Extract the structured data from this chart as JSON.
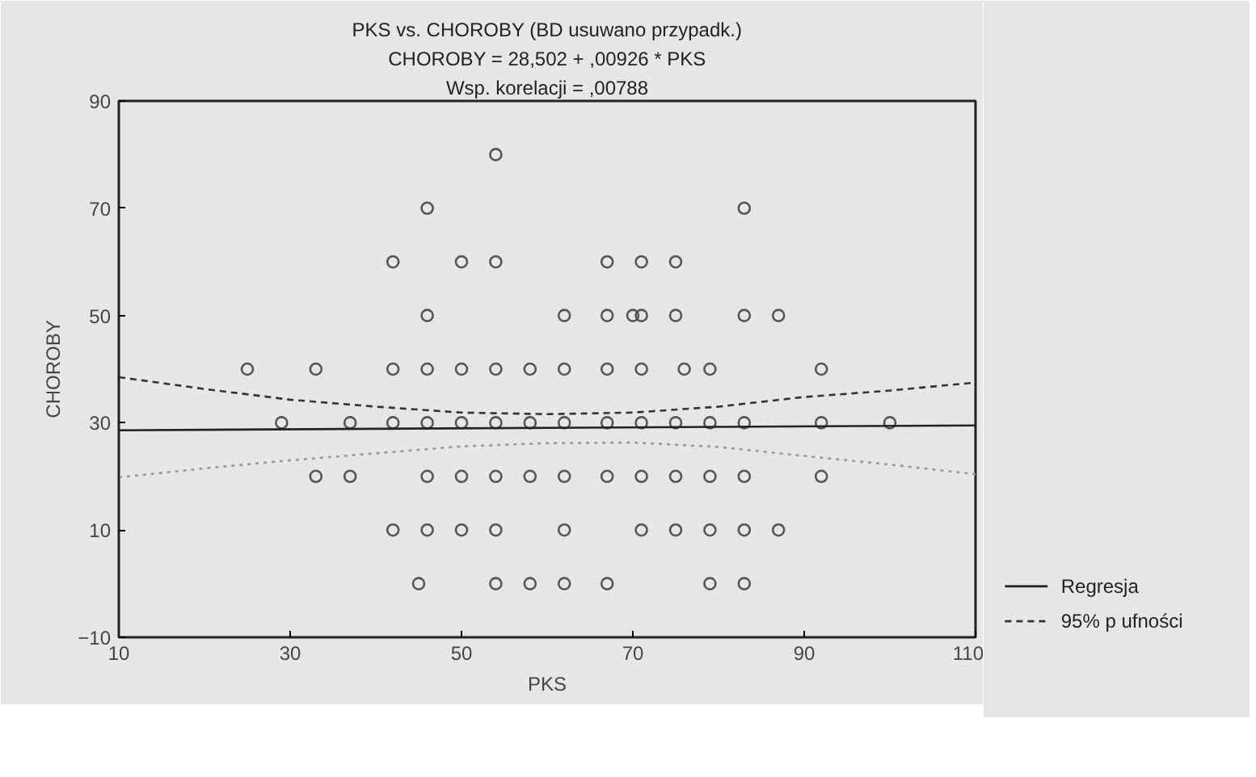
{
  "chart_data": {
    "type": "scatter",
    "title": "PKS vs. CHOROBY (BD usuwano przypadk.)",
    "subtitle": "CHOROBY = 28,502 + ,00926 * PKS",
    "annotations": [
      "Wsp. korelacji = ,00788"
    ],
    "xlabel": "PKS",
    "ylabel": "CHOROBY",
    "xlim": [
      10,
      110
    ],
    "ylim": [
      -10,
      90
    ],
    "xticks": [
      10,
      30,
      50,
      70,
      90,
      110
    ],
    "yticks": [
      -10,
      10,
      30,
      50,
      70,
      90
    ],
    "grid": false,
    "legend": "bottom right",
    "series": [
      {
        "color": "#555555",
        "marker": "circle",
        "x": [
          54,
          46,
          42,
          50,
          54,
          67,
          71,
          75,
          83,
          46,
          62,
          67,
          70,
          71,
          75,
          83,
          87,
          25,
          33,
          42,
          46,
          50,
          54,
          58,
          62,
          67,
          71,
          76,
          79,
          92,
          29,
          37,
          42,
          46,
          50,
          54,
          58,
          62,
          67,
          71,
          75,
          79,
          83,
          92,
          100,
          33,
          37,
          46,
          50,
          54,
          58,
          62,
          67,
          71,
          75,
          79,
          83,
          92,
          42,
          46,
          50,
          54,
          62,
          71,
          75,
          79,
          83,
          87,
          45,
          54,
          58,
          62,
          67,
          79,
          83
        ],
        "values": [
          80,
          70,
          60,
          60,
          60,
          60,
          60,
          60,
          70,
          50,
          50,
          50,
          50,
          50,
          50,
          50,
          50,
          40,
          40,
          40,
          40,
          40,
          40,
          40,
          40,
          40,
          40,
          40,
          40,
          40,
          30,
          30,
          30,
          30,
          30,
          30,
          30,
          30,
          30,
          30,
          30,
          30,
          30,
          30,
          30,
          20,
          20,
          20,
          20,
          20,
          20,
          20,
          20,
          20,
          20,
          20,
          20,
          20,
          10,
          10,
          10,
          10,
          10,
          10,
          10,
          10,
          10,
          10,
          0,
          0,
          0,
          0,
          0,
          0,
          0
        ]
      },
      {
        "type": "line",
        "name": "Regresja",
        "color": "#222222",
        "line_style": "solid",
        "x": [
          10,
          110
        ],
        "values": [
          28.6,
          29.5
        ]
      },
      {
        "type": "line",
        "name": "95% p ufności",
        "color": "#333333",
        "line_style": "dashed",
        "x": [
          10,
          20,
          30,
          40,
          50,
          60,
          70,
          80,
          90,
          100,
          110
        ],
        "values": [
          38.5,
          36.3,
          34.3,
          33,
          31.9,
          31.6,
          31.9,
          33,
          34.8,
          36,
          37.5
        ]
      },
      {
        "type": "line",
        "color": "#999999",
        "line_style": "dotted",
        "x": [
          10,
          20,
          30,
          40,
          50,
          60,
          70,
          80,
          90,
          100,
          110
        ],
        "values": [
          19.8,
          21.5,
          23,
          24.3,
          25.6,
          26.2,
          26.3,
          25.5,
          23.8,
          22.2,
          20.4
        ]
      }
    ]
  }
}
